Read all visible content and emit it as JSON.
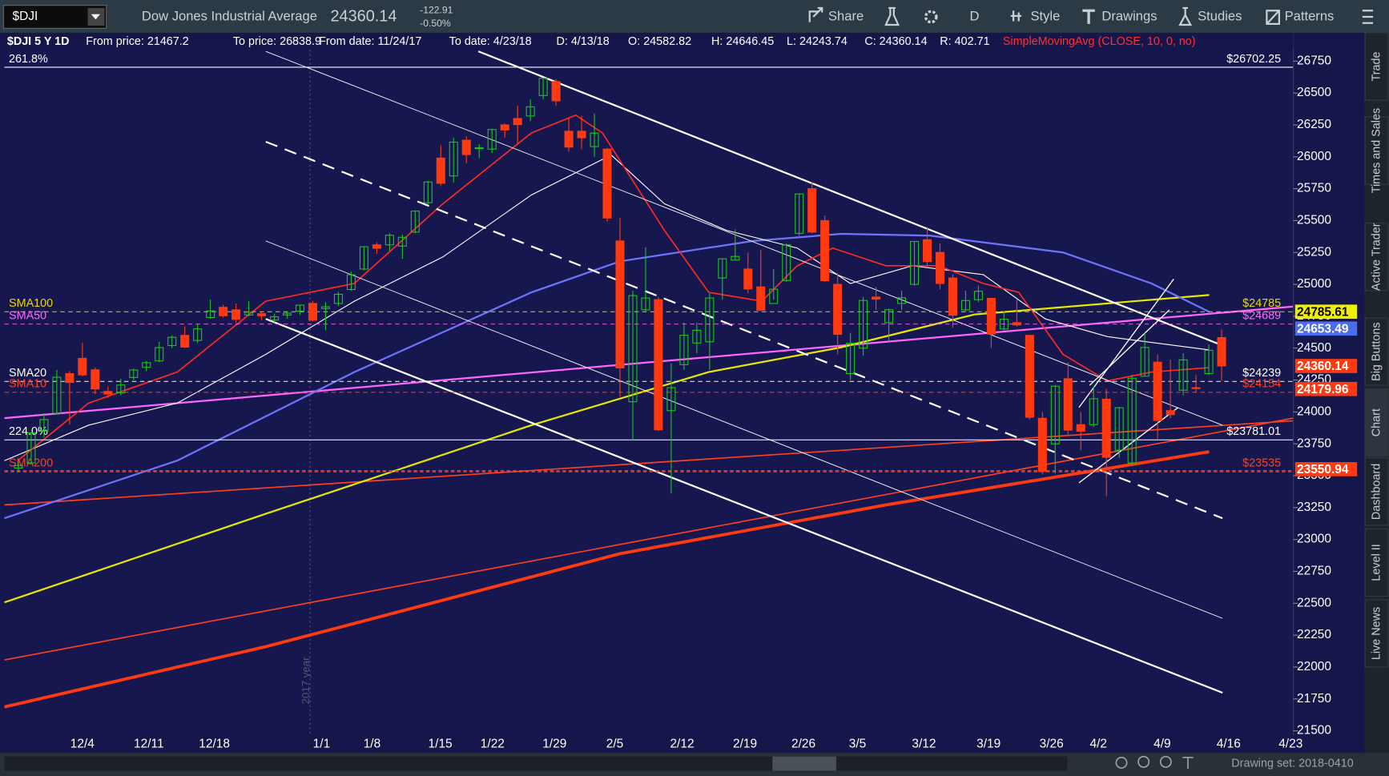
{
  "toolbar": {
    "symbol": "$DJI",
    "name": "Dow Jones Industrial Average",
    "last": "24360.14",
    "change": "-122.91",
    "change_pct": "-0.50%",
    "buttons": [
      "Share",
      "D",
      "Style",
      "Drawings",
      "Studies",
      "Patterns"
    ]
  },
  "info": {
    "title": "$DJI 5 Y 1D",
    "fields": [
      "From price: 21467.2",
      "To price: 26838.9",
      "From date: 11/24/17",
      "To date: 4/23/18",
      "D: 4/13/18",
      "O: 24582.82",
      "H: 24646.45",
      "L: 24243.74",
      "C: 24360.14",
      "R: 402.71"
    ],
    "study": "SimpleMovingAvg (CLOSE, 10, 0, no)"
  },
  "chart_data": {
    "type": "candlestick",
    "candles": [
      [
        23560,
        23620,
        23530,
        23580
      ],
      [
        23600,
        23840,
        23590,
        23836
      ],
      [
        23850,
        23990,
        23800,
        23940
      ],
      [
        23990,
        24330,
        23980,
        24272
      ],
      [
        24300,
        24320,
        23900,
        24231
      ],
      [
        24420,
        24540,
        24280,
        24290
      ],
      [
        24330,
        24350,
        24140,
        24180
      ],
      [
        24160,
        24200,
        24110,
        24140
      ],
      [
        24150,
        24260,
        24130,
        24211
      ],
      [
        24270,
        24340,
        24250,
        24329
      ],
      [
        24350,
        24400,
        24320,
        24386
      ],
      [
        24400,
        24550,
        24390,
        24504
      ],
      [
        24520,
        24600,
        24500,
        24585
      ],
      [
        24600,
        24670,
        24500,
        24508
      ],
      [
        24560,
        24690,
        24540,
        24651
      ],
      [
        24740,
        24880,
        24730,
        24792
      ],
      [
        24820,
        24840,
        24740,
        24754
      ],
      [
        24800,
        24850,
        24700,
        24726
      ],
      [
        24760,
        24870,
        24750,
        24782
      ],
      [
        24770,
        24790,
        24720,
        24754
      ],
      [
        24720,
        24770,
        24700,
        24746
      ],
      [
        24760,
        24790,
        24730,
        24774
      ],
      [
        24790,
        24840,
        24760,
        24837
      ],
      [
        24850,
        24870,
        24710,
        24719
      ],
      [
        24810,
        24860,
        24640,
        24824
      ],
      [
        24850,
        24940,
        24830,
        24922
      ],
      [
        24960,
        25100,
        24950,
        25075
      ],
      [
        25120,
        25300,
        25110,
        25295
      ],
      [
        25310,
        25330,
        25240,
        25283
      ],
      [
        25310,
        25400,
        25260,
        25385
      ],
      [
        25300,
        25390,
        25200,
        25369
      ],
      [
        25410,
        25580,
        25400,
        25574
      ],
      [
        25640,
        25810,
        25630,
        25803
      ],
      [
        25990,
        26090,
        25770,
        25792
      ],
      [
        25850,
        26150,
        25800,
        26115
      ],
      [
        26130,
        26160,
        25950,
        26017
      ],
      [
        26070,
        26100,
        25990,
        26071
      ],
      [
        26060,
        26220,
        26030,
        26214
      ],
      [
        26250,
        26260,
        26150,
        26210
      ],
      [
        26300,
        26400,
        26100,
        26252
      ],
      [
        26320,
        26450,
        26280,
        26392
      ],
      [
        26480,
        26620,
        26450,
        26616
      ],
      [
        26590,
        26610,
        26400,
        26439
      ],
      [
        26200,
        26300,
        26040,
        26076
      ],
      [
        26200,
        26320,
        26060,
        26149
      ],
      [
        26080,
        26340,
        26000,
        26186
      ],
      [
        26060,
        26070,
        25490,
        25520
      ],
      [
        25340,
        25520,
        24120,
        24345
      ],
      [
        24080,
        24950,
        23780,
        24912
      ],
      [
        24800,
        25290,
        24790,
        24893
      ],
      [
        24880,
        24900,
        23850,
        23860
      ],
      [
        24010,
        24380,
        23360,
        24190
      ],
      [
        24370,
        24700,
        24330,
        24601
      ],
      [
        24540,
        24700,
        24460,
        24640
      ],
      [
        24550,
        24930,
        24330,
        24893
      ],
      [
        25050,
        25200,
        24880,
        25200
      ],
      [
        25190,
        25430,
        25190,
        25219
      ],
      [
        25120,
        25250,
        24930,
        24964
      ],
      [
        24980,
        25270,
        24790,
        24797
      ],
      [
        24850,
        25120,
        24880,
        24962
      ],
      [
        25030,
        25320,
        25020,
        25309
      ],
      [
        25400,
        25710,
        25380,
        25709
      ],
      [
        25750,
        25800,
        25400,
        25410
      ],
      [
        25500,
        25540,
        25020,
        25029
      ],
      [
        25000,
        25090,
        24450,
        24608
      ],
      [
        24300,
        24620,
        24250,
        24538
      ],
      [
        24500,
        24900,
        24440,
        24874
      ],
      [
        24900,
        24980,
        24800,
        24884
      ],
      [
        24700,
        24810,
        24550,
        24801
      ],
      [
        24850,
        24950,
        24800,
        24895
      ],
      [
        25000,
        25340,
        24990,
        25336
      ],
      [
        25350,
        25450,
        25150,
        25178
      ],
      [
        25250,
        25320,
        24960,
        25007
      ],
      [
        25050,
        25080,
        24660,
        24758
      ],
      [
        24800,
        24950,
        24790,
        24873
      ],
      [
        24880,
        24990,
        24860,
        24946
      ],
      [
        24890,
        24890,
        24500,
        24610
      ],
      [
        24650,
        24790,
        24640,
        24727
      ],
      [
        24700,
        24880,
        24670,
        24682
      ],
      [
        24600,
        24600,
        23940,
        23958
      ],
      [
        23950,
        24000,
        23510,
        23533
      ],
      [
        23750,
        24210,
        23520,
        24202
      ],
      [
        24260,
        24390,
        23810,
        23857
      ],
      [
        23900,
        24000,
        23700,
        23849
      ],
      [
        23900,
        24200,
        23880,
        24103
      ],
      [
        24100,
        24180,
        23340,
        23644
      ],
      [
        23700,
        24040,
        23640,
        24033
      ],
      [
        23600,
        24290,
        23580,
        24264
      ],
      [
        24280,
        24620,
        24280,
        24505
      ],
      [
        24390,
        24450,
        23790,
        23933
      ],
      [
        24010,
        24410,
        23950,
        23979
      ],
      [
        24170,
        24460,
        24130,
        24408
      ],
      [
        24190,
        24290,
        24150,
        24189
      ],
      [
        24300,
        24530,
        24290,
        24483
      ],
      [
        24582.82,
        24646.45,
        24243.74,
        24360.14
      ]
    ],
    "up_color": "#19c519",
    "down_color": "#ff3a10",
    "yticks": [
      26750,
      26500,
      26250,
      26000,
      25750,
      25500,
      25250,
      25000,
      24750,
      24500,
      24250,
      24000,
      23750,
      23500,
      23250,
      23000,
      22750,
      22500,
      22250,
      22000,
      21750,
      21500
    ],
    "date_labels": [
      "12/4",
      "12/11",
      "12/18",
      "1/1",
      "1/8",
      "1/15",
      "1/22",
      "1/29",
      "2/5",
      "2/12",
      "2/19",
      "2/26",
      "3/5",
      "3/12",
      "3/19",
      "3/26",
      "4/2",
      "4/9",
      "4/16",
      "4/23"
    ],
    "year_label": "2017 year",
    "levels": [
      {
        "value": 26702.25,
        "label": "$26702.25",
        "left": "261.8%",
        "color": "#ffffff"
      },
      {
        "value": 24785,
        "label": "$24785",
        "left": "SMA100",
        "color": "#e8d800"
      },
      {
        "value": 24689,
        "label": "$24689",
        "left": "SMA50",
        "color": "#ff66ff"
      },
      {
        "value": 24239,
        "label": "$24239",
        "left": "SMA20",
        "color": "#ffffff"
      },
      {
        "value": 24154,
        "label": "$24154",
        "left": "SMA10",
        "color": "#ff4020"
      },
      {
        "value": 23781.01,
        "label": "$23781.01",
        "left": "224.0%",
        "color": "#ffffff"
      },
      {
        "value": 23535,
        "label": "$23535",
        "left": "SMA200",
        "color": "#ff4020"
      }
    ],
    "price_tags": [
      {
        "value": 24785.61,
        "color": "#f0f000",
        "text_color": "#000000"
      },
      {
        "value": 24653.49,
        "color": "#4a6cf0",
        "text_color": "#ffffff"
      },
      {
        "value": 24360.14,
        "color": "#ff3a10",
        "text_color": "#ffffff"
      },
      {
        "value": 24179.96,
        "color": "#ff3a10",
        "text_color": "#ffffff"
      },
      {
        "value": 23550.94,
        "color": "#ff3a10",
        "text_color": "#ffffff"
      }
    ]
  },
  "side_tabs": [
    "Trade",
    "Times and Sales",
    "Active Trader",
    "Big Buttons",
    "Chart",
    "Dashboard",
    "Level II",
    "Live News"
  ],
  "footer": "Drawing set: 2018-0410"
}
